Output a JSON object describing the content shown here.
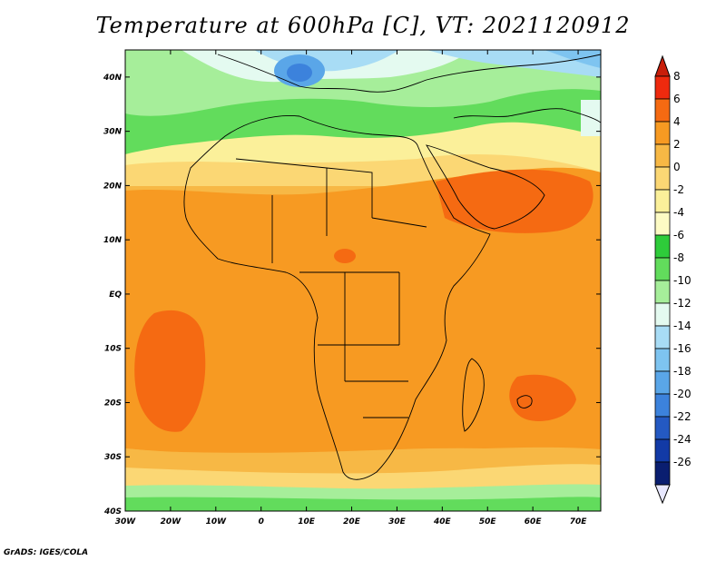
{
  "title": "Temperature at 600hPa [C], VT: 2021120912",
  "credit": "GrADS: IGES/COLA",
  "map": {
    "region": "Africa",
    "lon_range": [
      -30,
      75
    ],
    "lat_range": [
      -40,
      45
    ],
    "lon_labels": [
      "30W",
      "20W",
      "10W",
      "0",
      "10E",
      "20E",
      "30E",
      "40E",
      "50E",
      "60E",
      "70E"
    ],
    "lat_labels": [
      "40N",
      "30N",
      "20N",
      "10N",
      "EQ",
      "10S",
      "20S",
      "30S",
      "40S"
    ]
  },
  "colorbar": {
    "labels": [
      "8",
      "6",
      "4",
      "2",
      "0",
      "-2",
      "-4",
      "-6",
      "-8",
      "-10",
      "-12",
      "-14",
      "-16",
      "-18",
      "-20",
      "-22",
      "-24",
      "-26"
    ],
    "colors": [
      "#ee2a0e",
      "#f56a12",
      "#f79a22",
      "#f7b845",
      "#fbd774",
      "#fbf09a",
      "#fdfbc4",
      "#2ecc3a",
      "#62dc5c",
      "#a6ee9a",
      "#e4faf0",
      "#a8dcf5",
      "#7ec4f0",
      "#5aa6e8",
      "#3c82dc",
      "#2459c2",
      "#123aa6",
      "#0a1e70"
    ]
  }
}
